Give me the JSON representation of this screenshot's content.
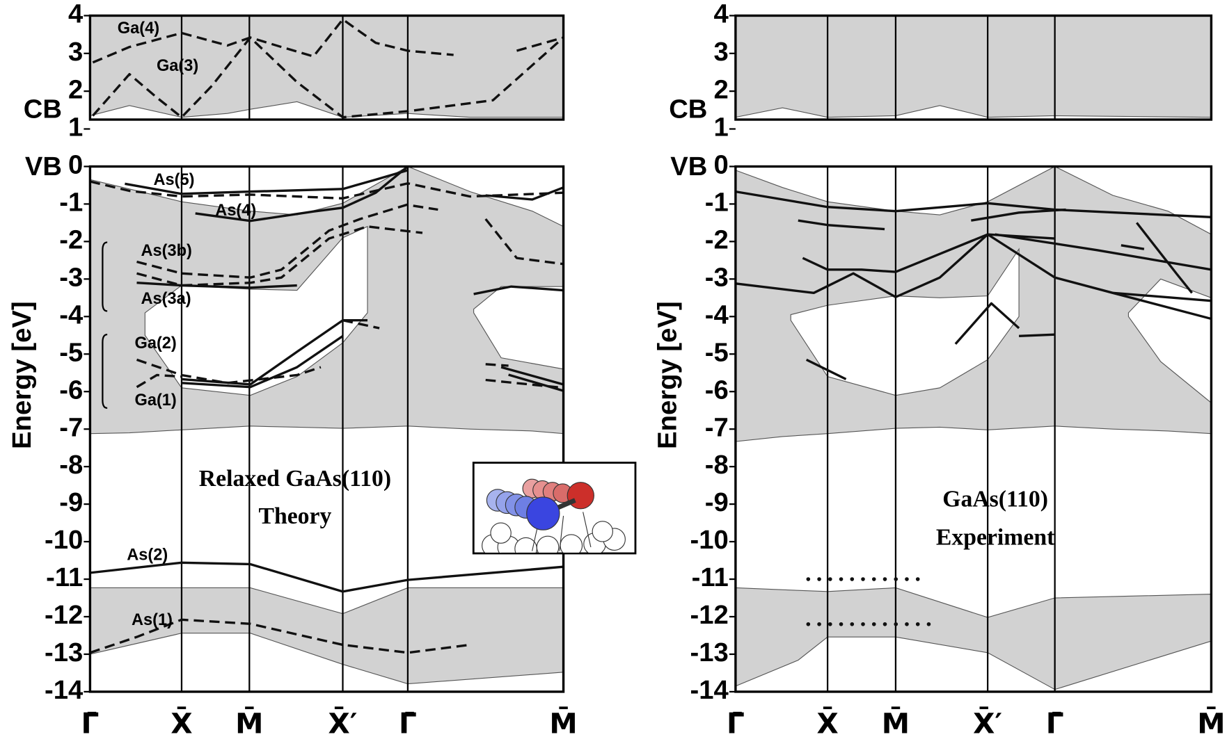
{
  "chart_data": [
    {
      "type": "line",
      "title": "Relaxed GaAs(110)",
      "subtitle": "Theory",
      "ylabel": "Energy [eV]",
      "fill_color": "#d2d2d2",
      "line_color": "#111111",
      "xlim": [
        0,
        5.17
      ],
      "xticks": [
        {
          "value": 0,
          "label": "Γ̄"
        },
        {
          "value": 1.0,
          "label": "X̄"
        },
        {
          "value": 1.74,
          "label": "M̄"
        },
        {
          "value": 2.76,
          "label": "X̄′"
        },
        {
          "value": 3.47,
          "label": "Γ̄"
        },
        {
          "value": 5.17,
          "label": "M̄"
        }
      ],
      "cb": {
        "label": "CB",
        "ylim": [
          1,
          4
        ],
        "yticks": [
          1,
          2,
          3,
          4
        ],
        "regions": [
          {
            "x": [
              0,
              0.43,
              1.0,
              1.5,
              1.75,
              2.26,
              2.76,
              3.47,
              4.15,
              5.17
            ],
            "lower": [
              1.35,
              1.62,
              1.31,
              1.41,
              1.52,
              1.72,
              1.31,
              1.41,
              1.31,
              1.31
            ],
            "upper": [
              4,
              4,
              4,
              4,
              4,
              4,
              4,
              4,
              4,
              4
            ]
          }
        ],
        "gaps": [],
        "series": [
          {
            "name": "Ga(4)",
            "style": "dashed",
            "x": [
              0.03,
              0.43,
              1.0,
              1.5,
              1.75,
              2.09,
              2.44,
              2.76,
              3.12,
              3.47,
              3.97,
              4.3,
              4.66,
              5.17
            ],
            "y": [
              2.76,
              3.17,
              3.54,
              3.21,
              3.42,
              3.17,
              2.92,
              3.9,
              3.28,
              3.07,
              2.96,
              null,
              3.07,
              3.42
            ]
          },
          {
            "name": "Ga(3)",
            "style": "dashed",
            "x": [
              0.03,
              0.43,
              0.73,
              1.0,
              1.33,
              1.75,
              2.26,
              2.76,
              3.47,
              4.4,
              5.17
            ],
            "y": [
              1.35,
              2.45,
              1.83,
              1.31,
              2.14,
              3.42,
              2.24,
              1.31,
              1.47,
              1.76,
              3.42
            ]
          }
        ]
      },
      "vb": {
        "label": "VB",
        "ylim": [
          -14,
          0
        ],
        "yticks": [
          0,
          -1,
          -2,
          -3,
          -4,
          -5,
          -6,
          -7,
          -8,
          -9,
          -10,
          -11,
          -12,
          -13,
          -14
        ],
        "regions": [
          {
            "x": [
              0,
              0.43,
              1.0,
              1.75,
              2.26,
              2.76,
              3.47,
              4.15,
              4.83,
              5.17
            ],
            "upper": [
              -0.35,
              -0.6,
              -0.94,
              -1.19,
              -1.29,
              -0.98,
              0,
              -0.67,
              -1.19,
              -1.6
            ],
            "lower": [
              -7.12,
              -7.1,
              -7.02,
              -6.92,
              -6.95,
              -6.98,
              -6.92,
              -7.0,
              -7.05,
              -7.12
            ]
          },
          {
            "x": [
              0,
              1.0,
              1.75,
              2.76,
              3.47,
              5.17
            ],
            "upper": [
              -11.23,
              -11.23,
              -11.23,
              -11.92,
              -11.23,
              -11.23
            ],
            "lower": [
              -13.0,
              -12.44,
              -12.44,
              -13.27,
              -13.79,
              -13.48
            ]
          }
        ],
        "gaps": [
          {
            "x": [
              0.6,
              1.0,
              1.75,
              2.26,
              2.76,
              3.03
            ],
            "upper": [
              -3.9,
              -3.17,
              -3.27,
              -3.3,
              -1.9,
              -1.6
            ],
            "lower": [
              -4.5,
              -5.9,
              -6.1,
              -5.6,
              -4.7,
              -3.9
            ]
          },
          {
            "x": [
              4.19,
              4.49,
              5.17
            ],
            "upper": [
              -3.8,
              -3.2,
              -3.2
            ],
            "lower": [
              -3.9,
              -5.1,
              -5.4
            ]
          }
        ],
        "series": [
          {
            "style": "solid",
            "x": [
              0.38,
              1.0,
              1.75,
              2.76,
              3.12,
              3.47
            ],
            "y": [
              -0.46,
              -0.73,
              -0.67,
              -0.6,
              -0.35,
              -0.1
            ]
          },
          {
            "style": "solid",
            "x": [
              4.32,
              4.83,
              5.17
            ],
            "y": [
              -0.77,
              -0.88,
              -0.56
            ]
          },
          {
            "name": "As(4)",
            "style": "solid",
            "x": [
              1.15,
              1.75,
              2.44,
              2.76,
              3.12,
              3.47
            ],
            "y": [
              -1.25,
              -1.45,
              -1.2,
              -1.1,
              -0.7,
              0
            ]
          },
          {
            "name": "As(5)",
            "style": "dashed",
            "x": [
              0,
              0.43,
              1.0,
              1.75,
              2.76,
              3.47,
              4.15,
              5.17
            ],
            "y": [
              -0.4,
              -0.65,
              -0.8,
              -0.75,
              -0.85,
              -0.45,
              -0.8,
              -0.7
            ]
          },
          {
            "name": "As(3b)",
            "style": "dashed",
            "x": [
              0.51,
              1.0,
              1.75,
              2.09,
              2.61,
              2.95,
              3.46,
              3.8
            ],
            "y": [
              -2.54,
              -2.85,
              -2.96,
              -2.75,
              -1.71,
              -1.4,
              -1.02,
              -1.15
            ]
          },
          {
            "style": "dashed",
            "x": [
              0.51,
              1.0,
              1.75,
              2.09,
              2.61,
              3.03,
              3.63
            ],
            "y": [
              -2.85,
              -3.17,
              -3.1,
              -2.96,
              -1.92,
              -1.6,
              -1.77
            ]
          },
          {
            "name": "As(3a)",
            "style": "solid",
            "x": [
              0.51,
              1.0,
              1.75,
              2.26
            ],
            "y": [
              -3.1,
              -3.17,
              -3.23,
              -3.17
            ]
          },
          {
            "style": "dashed",
            "x": [
              4.32,
              4.66,
              5.17
            ],
            "y": [
              -1.4,
              -2.44,
              -2.6
            ]
          },
          {
            "style": "solid",
            "x": [
              4.19,
              4.6,
              5.17
            ],
            "y": [
              -3.4,
              -3.2,
              -3.3
            ]
          },
          {
            "name": "Ga(2)",
            "style": "solid",
            "x": [
              1.0,
              1.75,
              2.26,
              2.76,
              3.03
            ],
            "y": [
              -5.67,
              -5.81,
              -4.94,
              -4.1,
              -4.1
            ]
          },
          {
            "style": "solid",
            "x": [
              1.0,
              1.75,
              2.26,
              2.76
            ],
            "y": [
              -5.77,
              -5.88,
              -5.35,
              -4.52
            ]
          },
          {
            "style": "dashed",
            "x": [
              0.51,
              1.0,
              1.5,
              2.26,
              2.52
            ],
            "y": [
              -5.15,
              -5.56,
              -5.77,
              -5.56,
              -5.35
            ]
          },
          {
            "style": "dashed",
            "x": [
              2.76,
              3.16
            ],
            "y": [
              -4.1,
              -4.31
            ]
          },
          {
            "name": "Ga(1)",
            "style": "dashed",
            "x": [
              0.51,
              0.73,
              1.0
            ],
            "y": [
              -5.88,
              -5.56,
              -5.6
            ]
          },
          {
            "style": "dashed",
            "x": [
              4.32,
              4.57
            ],
            "y": [
              -5.27,
              -5.31
            ]
          },
          {
            "style": "solid",
            "x": [
              4.49,
              5.17
            ],
            "y": [
              -5.35,
              -5.81
            ]
          },
          {
            "style": "dashed",
            "x": [
              4.32,
              5.17
            ],
            "y": [
              -5.69,
              -5.9
            ]
          },
          {
            "style": "solid",
            "x": [
              4.57,
              5.17
            ],
            "y": [
              -5.55,
              -5.98
            ]
          },
          {
            "name": "As(2)",
            "style": "solid",
            "x": [
              0,
              1.0,
              1.75,
              2.76,
              3.47,
              5.17
            ],
            "y": [
              -10.83,
              -10.56,
              -10.6,
              -11.33,
              -11.02,
              -10.67
            ]
          },
          {
            "name": "As(1)",
            "style": "dashed",
            "x": [
              0,
              0.51,
              1.0,
              1.75,
              2.76,
              3.47,
              4.15
            ],
            "y": [
              -12.96,
              -12.54,
              -12.08,
              -12.19,
              -12.75,
              -12.96,
              -12.75
            ]
          }
        ]
      }
    },
    {
      "type": "line",
      "title": "GaAs(110)",
      "subtitle": "Experiment",
      "ylabel": "Energy [eV]",
      "fill_color": "#d2d2d2",
      "line_color": "#111111",
      "xlim": [
        0,
        5.17
      ],
      "xticks": [
        {
          "value": 0,
          "label": "Γ̄"
        },
        {
          "value": 1.0,
          "label": "X̄"
        },
        {
          "value": 1.74,
          "label": "M̄"
        },
        {
          "value": 2.74,
          "label": "X̄′"
        },
        {
          "value": 3.47,
          "label": "Γ̄"
        },
        {
          "value": 5.17,
          "label": "M̄"
        }
      ],
      "cb": {
        "label": "CB",
        "ylim": [
          1,
          4
        ],
        "yticks": [
          1,
          2,
          3,
          4
        ],
        "regions": [
          {
            "x": [
              0,
              0.51,
              1.0,
              1.74,
              2.22,
              2.74,
              3.47,
              5.17
            ],
            "lower": [
              1.31,
              1.56,
              1.31,
              1.35,
              1.62,
              1.31,
              1.35,
              1.31
            ],
            "upper": [
              4,
              4,
              4,
              4,
              4,
              4,
              4,
              4
            ]
          }
        ],
        "gaps": [],
        "series": []
      },
      "vb": {
        "label": "VB",
        "ylim": [
          -14,
          0
        ],
        "yticks": [
          0,
          -1,
          -2,
          -3,
          -4,
          -5,
          -6,
          -7,
          -8,
          -9,
          -10,
          -11,
          -12,
          -13,
          -14
        ],
        "regions": [
          {
            "x": [
              0,
              0.51,
              1.0,
              1.74,
              2.22,
              2.74,
              3.47,
              4.1,
              4.7,
              5.17
            ],
            "upper": [
              -0.1,
              -0.56,
              -0.94,
              -1.19,
              -1.29,
              -0.94,
              0,
              -0.77,
              -1.19,
              -1.81
            ],
            "lower": [
              -7.33,
              -7.2,
              -7.12,
              -6.98,
              -6.95,
              -7.02,
              -6.92,
              -7.0,
              -7.05,
              -7.12
            ]
          },
          {
            "x": [
              0,
              0.68,
              1.0,
              1.74,
              2.74,
              3.47,
              5.17
            ],
            "upper": [
              -11.23,
              -11.3,
              -11.33,
              -11.23,
              -12.02,
              -11.5,
              -11.4
            ],
            "lower": [
              -13.85,
              -13.16,
              -12.54,
              -12.54,
              -12.96,
              -13.94,
              -12.65
            ]
          }
        ],
        "gaps": [
          {
            "x": [
              0.6,
              1.0,
              1.74,
              2.22,
              2.74,
              3.08
            ],
            "upper": [
              -3.95,
              -3.7,
              -3.45,
              -3.5,
              -3.45,
              -2.2
            ],
            "lower": [
              -4.1,
              -5.6,
              -6.1,
              -5.9,
              -5.15,
              -4.0
            ]
          },
          {
            "x": [
              4.27,
              4.62,
              5.17
            ],
            "upper": [
              -3.9,
              -3.0,
              -3.5
            ],
            "lower": [
              -4.0,
              -5.2,
              -6.3
            ]
          }
        ],
        "series": [
          {
            "style": "solid",
            "x": [
              0,
              1.0,
              1.74,
              2.74,
              3.47,
              5.17
            ],
            "y": [
              -0.67,
              -1.08,
              -1.19,
              -0.98,
              -1.15,
              -1.35
            ]
          },
          {
            "style": "solid",
            "x": [
              0.68,
              1.0,
              1.62
            ],
            "y": [
              -1.44,
              -1.56,
              -1.67
            ]
          },
          {
            "style": "solid",
            "x": [
              2.56,
              3.08,
              3.59
            ],
            "y": [
              -1.44,
              -1.23,
              -1.15
            ]
          },
          {
            "style": "solid",
            "x": [
              0.73,
              1.0,
              1.37,
              1.74,
              2.22,
              2.74,
              3.47
            ],
            "y": [
              -2.44,
              -2.75,
              -2.75,
              -2.81,
              -2.33,
              -1.81,
              -1.92
            ]
          },
          {
            "style": "solid",
            "x": [
              0,
              0.85,
              1.28,
              1.74,
              2.22,
              2.74,
              3.47,
              4.1,
              5.17
            ],
            "y": [
              -3.12,
              -3.37,
              -2.85,
              -3.48,
              -2.96,
              -1.81,
              -2.96,
              -3.37,
              -3.58
            ]
          },
          {
            "style": "solid",
            "x": [
              2.82,
              3.93,
              5.17
            ],
            "y": [
              -1.81,
              -2.23,
              -2.75
            ]
          },
          {
            "style": "solid",
            "x": [
              4.36,
              4.79,
              4.96
            ],
            "y": [
              -1.5,
              -2.85,
              -3.37
            ]
          },
          {
            "style": "solid",
            "x": [
              4.19,
              4.44
            ],
            "y": [
              -2.1,
              -2.2
            ]
          },
          {
            "style": "solid",
            "x": [
              2.39,
              2.78,
              3.08
            ],
            "y": [
              -4.73,
              -3.65,
              -4.31
            ]
          },
          {
            "style": "solid",
            "x": [
              0.77,
              1.2
            ],
            "y": [
              -5.15,
              -5.67
            ]
          },
          {
            "style": "solid",
            "x": [
              3.08,
              3.47
            ],
            "y": [
              -4.52,
              -4.48
            ]
          },
          {
            "style": "solid",
            "x": [
              4.1,
              5.17
            ],
            "y": [
              -3.37,
              -4.06
            ]
          },
          {
            "style": "dotted",
            "x": [
              0.79,
              2.09
            ],
            "y": [
              -11.0,
              -11.0
            ]
          },
          {
            "style": "dotted",
            "x": [
              0.79,
              2.19
            ],
            "y": [
              -12.2,
              -12.2
            ]
          }
        ]
      }
    }
  ]
}
